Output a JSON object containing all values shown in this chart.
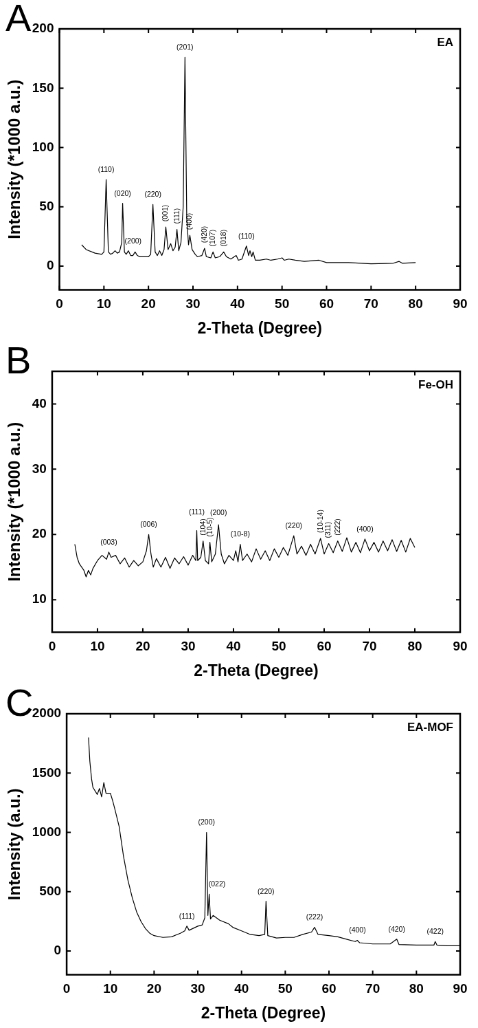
{
  "chart_data": [
    {
      "type": "line",
      "title": "A",
      "xlabel": "2-Theta (Degree)",
      "ylabel": "Intensity (*1000 a.u.)",
      "xlim": [
        0,
        90
      ],
      "ylim": [
        -20,
        200
      ],
      "xticks": [
        0,
        10,
        20,
        30,
        40,
        50,
        60,
        70,
        80,
        90
      ],
      "yticks": [
        0,
        50,
        100,
        150,
        200
      ],
      "grid": false,
      "legend": false,
      "marker": "none",
      "line_style": "solid",
      "x": [
        5,
        6,
        8,
        9.5,
        10,
        10.5,
        11,
        11.5,
        12,
        12.5,
        13,
        13.5,
        14,
        14.2,
        14.6,
        15,
        15.5,
        16,
        16.5,
        17,
        17.5,
        18,
        20,
        20.5,
        21,
        21.5,
        22,
        22.5,
        23,
        23.5,
        23.9,
        24.4,
        25,
        25.5,
        26,
        26.4,
        26.8,
        27.3,
        27.8,
        28.2,
        28.6,
        29,
        29.3,
        29.8,
        30.5,
        31,
        32,
        32.6,
        33,
        34,
        34.5,
        35,
        36,
        36.9,
        37.5,
        38.5,
        39.7,
        40.2,
        41,
        42,
        42.5,
        42.8,
        43.2,
        43.5,
        44,
        45,
        46.5,
        47.5,
        49,
        50,
        50.5,
        51.5,
        53,
        55,
        58.3,
        60,
        65,
        70,
        75,
        76.3,
        77,
        80
      ],
      "series": [
        {
          "color": "#000000",
          "values": [
            18,
            14,
            11,
            10,
            12,
            73,
            12,
            10,
            11,
            13,
            11,
            12,
            20,
            53,
            12,
            10,
            13,
            9,
            9,
            12,
            9,
            8,
            8,
            10,
            52,
            12,
            9,
            13,
            9,
            14,
            33,
            14,
            19,
            13,
            16,
            31,
            13,
            20,
            50,
            176,
            40,
            18,
            26,
            14,
            10,
            8,
            9,
            15,
            8,
            7,
            12,
            7,
            8,
            12,
            8,
            6,
            9,
            5,
            6,
            17,
            9,
            13,
            8,
            12,
            5,
            5,
            6,
            5,
            6,
            7,
            5,
            6,
            5,
            4,
            5,
            3,
            3,
            2,
            2.5,
            4,
            2.5,
            3
          ]
        }
      ],
      "annotations": [
        "EA",
        {
          "text": "(110)",
          "x": 10.5,
          "y": 73
        },
        {
          "text": "(020)",
          "x": 14.2,
          "y": 53
        },
        {
          "text": "(200)",
          "x": 15.5,
          "y": 13
        },
        {
          "text": "(220)",
          "x": 21,
          "y": 52
        },
        {
          "text": "(001)",
          "x": 23.9,
          "y": 33
        },
        {
          "text": "(111)",
          "x": 26.4,
          "y": 31
        },
        {
          "text": "(201)",
          "x": 28.2,
          "y": 176
        },
        {
          "text": "(400)",
          "x": 29.3,
          "y": 26
        },
        {
          "text": "(420)",
          "x": 32.6,
          "y": 15
        },
        {
          "text": "(107)",
          "x": 34.5,
          "y": 12
        },
        {
          "text": "(018)",
          "x": 36.9,
          "y": 12
        },
        {
          "text": "(110)",
          "x": 42,
          "y": 17
        }
      ]
    },
    {
      "type": "line",
      "title": "B",
      "xlabel": "2-Theta (Degree)",
      "ylabel": "Intensity (*1000 a.u.)",
      "xlim": [
        0,
        90
      ],
      "ylim": [
        5,
        45
      ],
      "xticks": [
        0,
        10,
        20,
        30,
        40,
        50,
        60,
        70,
        80,
        90
      ],
      "yticks": [
        10,
        20,
        30,
        40
      ],
      "grid": false,
      "legend": false,
      "marker": "none",
      "line_style": "solid",
      "x": [
        5,
        5.5,
        6,
        7,
        7.5,
        8,
        8.5,
        9,
        10,
        11,
        12,
        12.5,
        13,
        14,
        15,
        16,
        17,
        18,
        19,
        20,
        20.8,
        21.3,
        21.8,
        22.3,
        23,
        24,
        25,
        26,
        27,
        28,
        29,
        30,
        31,
        31.7,
        31.9,
        32.1,
        32.8,
        33.3,
        33.8,
        34.5,
        34.8,
        35.2,
        36,
        36.7,
        37.3,
        38,
        39,
        40,
        40.5,
        41,
        41.5,
        42,
        43,
        44,
        45,
        46,
        47,
        48,
        49,
        50,
        51,
        52,
        53.3,
        54,
        55,
        56,
        57,
        58,
        59.2,
        60,
        61,
        62,
        63,
        64,
        65,
        66,
        67,
        68,
        69,
        70,
        71,
        72,
        73,
        74,
        75,
        76,
        77,
        78,
        79,
        80
      ],
      "series": [
        {
          "color": "#000000",
          "values": [
            18.5,
            16.5,
            15.5,
            14.5,
            13.5,
            14.5,
            13.8,
            14.8,
            16,
            16.8,
            16.2,
            17.3,
            16.5,
            16.8,
            15.5,
            16.4,
            15,
            16,
            15.2,
            15.8,
            17.5,
            20,
            17,
            15,
            16.3,
            15,
            16.5,
            14.8,
            16.4,
            15.5,
            16.6,
            15.3,
            16.8,
            16,
            20.6,
            16,
            16.5,
            19,
            16,
            15.5,
            18.8,
            15.8,
            17,
            21.5,
            17,
            15.5,
            16.8,
            16,
            17.5,
            15.8,
            18.5,
            16,
            17,
            15.8,
            17.8,
            16.2,
            17.5,
            16,
            17.8,
            16.5,
            18,
            16.8,
            19.8,
            17,
            18.2,
            16.8,
            18.5,
            17,
            19.4,
            17,
            18.6,
            17.2,
            19,
            17.4,
            19.5,
            17.3,
            18.8,
            17.2,
            19.3,
            17.5,
            18.8,
            17.3,
            19,
            17.5,
            19.2,
            17.4,
            19.1,
            17.3,
            19.4,
            18
          ]
        }
      ],
      "annotations": [
        "Fe-OH",
        {
          "text": "(003)",
          "x": 12.5,
          "y": 17.3
        },
        {
          "text": "(006)",
          "x": 21.3,
          "y": 20
        },
        {
          "text": "(111)",
          "x": 31.9,
          "y": 20.6
        },
        {
          "text": "(200)",
          "x": 36.7,
          "y": 21.5
        },
        {
          "text": "(104)",
          "x": 33.3,
          "y": 19
        },
        {
          "text": "(10-5)",
          "x": 34.8,
          "y": 18.8
        },
        {
          "text": "(10-8)",
          "x": 41.5,
          "y": 18.5
        },
        {
          "text": "(220)",
          "x": 53.3,
          "y": 19.8
        },
        {
          "text": "(10-14)",
          "x": 59.2,
          "y": 19.4
        },
        {
          "text": "(311)",
          "x": 61,
          "y": 18.6
        },
        {
          "text": "(222)",
          "x": 63,
          "y": 19
        },
        {
          "text": "(400)",
          "x": 69,
          "y": 19.3
        }
      ]
    },
    {
      "type": "line",
      "title": "C",
      "xlabel": "2-Theta (Degree)",
      "ylabel": "Intensity (a.u.)",
      "xlim": [
        0,
        90
      ],
      "ylim": [
        -200,
        2000
      ],
      "xticks": [
        0,
        10,
        20,
        30,
        40,
        50,
        60,
        70,
        80,
        90
      ],
      "yticks": [
        0,
        500,
        1000,
        1500,
        2000
      ],
      "grid": false,
      "legend": false,
      "marker": "none",
      "line_style": "solid",
      "x": [
        5,
        5.3,
        5.7,
        6,
        7,
        7.5,
        8,
        8.5,
        9,
        10,
        10.5,
        11,
        12,
        13,
        14,
        15,
        16,
        17,
        18,
        19,
        20,
        22,
        24,
        26,
        27,
        27.5,
        28,
        30,
        31,
        31.6,
        32,
        32.3,
        32.6,
        32.9,
        33.5,
        35,
        37,
        38,
        40,
        42,
        44,
        45.3,
        45.6,
        46,
        48,
        50,
        52,
        54,
        56,
        56.7,
        57.5,
        60,
        62,
        64,
        66,
        66.5,
        67,
        70,
        74,
        75.5,
        76,
        80,
        84,
        84.3,
        84.7,
        87,
        90
      ],
      "series": [
        {
          "color": "#000000",
          "values": [
            1800,
            1600,
            1450,
            1380,
            1320,
            1370,
            1300,
            1420,
            1330,
            1330,
            1270,
            1200,
            1050,
            800,
            600,
            450,
            330,
            250,
            190,
            150,
            130,
            115,
            120,
            150,
            170,
            210,
            175,
            210,
            220,
            280,
            1000,
            300,
            480,
            270,
            300,
            260,
            230,
            200,
            170,
            140,
            130,
            140,
            420,
            130,
            110,
            115,
            115,
            140,
            160,
            200,
            140,
            130,
            120,
            100,
            80,
            90,
            70,
            60,
            60,
            100,
            55,
            50,
            50,
            80,
            50,
            45,
            45
          ]
        }
      ],
      "annotations": [
        "EA-MOF",
        {
          "text": "(111)",
          "x": 27.5,
          "y": 210
        },
        {
          "text": "(200)",
          "x": 32,
          "y": 1000
        },
        {
          "text": "(022)",
          "x": 32.6,
          "y": 480
        },
        {
          "text": "(220)",
          "x": 45.6,
          "y": 420
        },
        {
          "text": "(222)",
          "x": 56.7,
          "y": 200
        },
        {
          "text": "(400)",
          "x": 66.5,
          "y": 90
        },
        {
          "text": "(420)",
          "x": 75.5,
          "y": 100
        },
        {
          "text": "(422)",
          "x": 84.3,
          "y": 80
        }
      ]
    }
  ]
}
